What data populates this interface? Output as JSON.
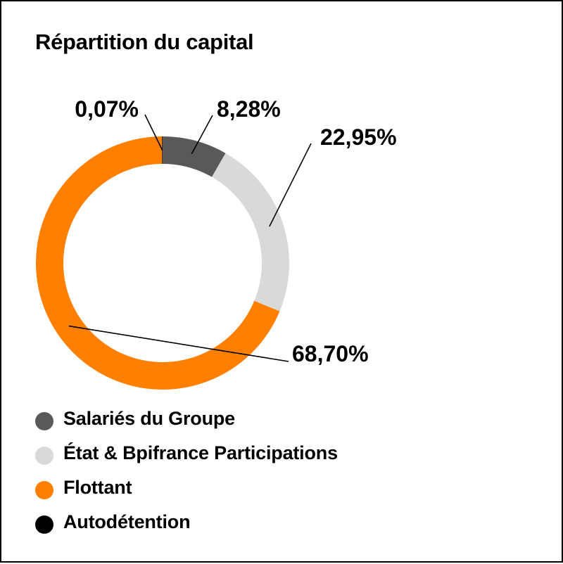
{
  "chart_data": {
    "type": "pie",
    "variant": "donut",
    "title": "Répartition du capital",
    "series": [
      {
        "name": "Salariés du Groupe",
        "value": 8.28,
        "label": "8,28%",
        "color": "#595959"
      },
      {
        "name": "État & Bpifrance Participations",
        "value": 22.95,
        "label": "22,95%",
        "color": "#d9d9d9"
      },
      {
        "name": "Flottant",
        "value": 68.7,
        "label": "68,70%",
        "color": "#ff7f00"
      },
      {
        "name": "Autodétention",
        "value": 0.07,
        "label": "0,07%",
        "color": "#000000"
      }
    ],
    "legend_position": "bottom-left"
  }
}
